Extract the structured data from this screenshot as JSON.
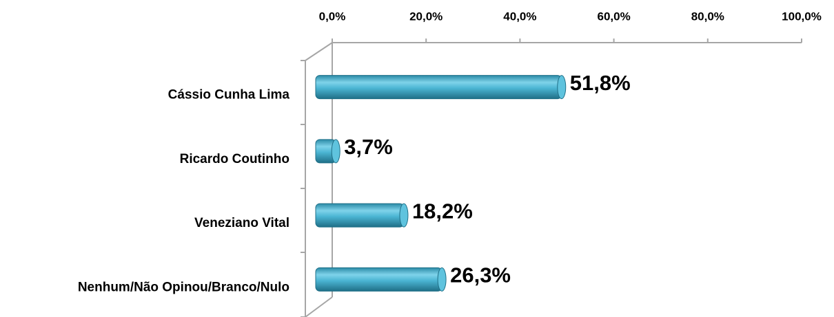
{
  "chart_data": {
    "type": "bar",
    "orientation": "horizontal",
    "categories": [
      "Cássio Cunha Lima",
      "Ricardo Coutinho",
      "Veneziano Vital",
      "Nenhum/Não Opinou/Branco/Nulo"
    ],
    "values": [
      51.8,
      3.7,
      18.2,
      26.3
    ],
    "value_labels": [
      "51,8%",
      "3,7%",
      "18,2%",
      "26,3%"
    ],
    "color": "#4bacc6",
    "xlim": [
      0,
      100
    ],
    "xticks": [
      {
        "value": 0,
        "label": "0,0%"
      },
      {
        "value": 20,
        "label": "20,0%"
      },
      {
        "value": 40,
        "label": "40,0%"
      },
      {
        "value": 60,
        "label": "60,0%"
      },
      {
        "value": 80,
        "label": "80,0%"
      },
      {
        "value": 100,
        "label": "100,0%"
      }
    ]
  }
}
